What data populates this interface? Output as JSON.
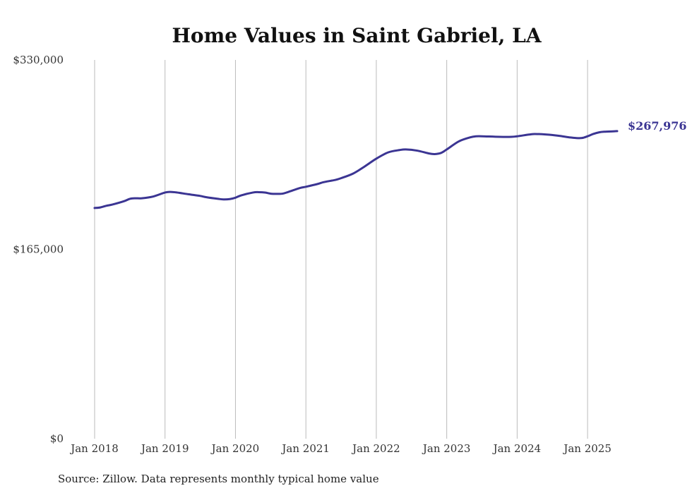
{
  "chart_data": {
    "type": "line",
    "title": "Home Values in Saint Gabriel, LA",
    "source": "Source: Zillow. Data represents monthly typical home value",
    "xlabel": "",
    "ylabel": "",
    "ylim": [
      0,
      330000
    ],
    "y_ticks": [
      {
        "value": 0,
        "label": "$0"
      },
      {
        "value": 165000,
        "label": "$165,000"
      },
      {
        "value": 330000,
        "label": "$330,000"
      }
    ],
    "x_ticks": [
      {
        "value": 2018.0,
        "label": "Jan 2018"
      },
      {
        "value": 2019.0,
        "label": "Jan 2019"
      },
      {
        "value": 2020.0,
        "label": "Jan 2020"
      },
      {
        "value": 2021.0,
        "label": "Jan 2021"
      },
      {
        "value": 2022.0,
        "label": "Jan 2022"
      },
      {
        "value": 2023.0,
        "label": "Jan 2023"
      },
      {
        "value": 2024.0,
        "label": "Jan 2024"
      },
      {
        "value": 2025.0,
        "label": "Jan 2025"
      }
    ],
    "xlim": [
      2018.0,
      2025.42
    ],
    "grid": "vertical",
    "line_color": "#3b3593",
    "end_label": "$267,976",
    "series": [
      {
        "x": [
          2018.0,
          2018.08,
          2018.17,
          2018.25,
          2018.42,
          2018.5,
          2018.58,
          2018.67,
          2018.83,
          2019.0,
          2019.08,
          2019.17,
          2019.33,
          2019.5,
          2019.58,
          2019.75,
          2019.83,
          2019.92,
          2020.0,
          2020.08,
          2020.25,
          2020.33,
          2020.42,
          2020.5,
          2020.58,
          2020.67,
          2020.75,
          2020.92,
          2021.0,
          2021.17,
          2021.25,
          2021.42,
          2021.5,
          2021.67,
          2021.83,
          2022.0,
          2022.17,
          2022.33,
          2022.42,
          2022.58,
          2022.75,
          2022.83,
          2022.92,
          2023.0,
          2023.17,
          2023.33,
          2023.42,
          2023.5,
          2023.75,
          2023.92,
          2024.0,
          2024.17,
          2024.25,
          2024.42,
          2024.58,
          2024.75,
          2024.83,
          2024.92,
          2025.0,
          2025.08,
          2025.17,
          2025.25,
          2025.42
        ],
        "y": [
          201000,
          201500,
          203000,
          204000,
          207000,
          209000,
          209500,
          209500,
          211000,
          214500,
          215000,
          214500,
          213000,
          211500,
          210500,
          209000,
          208500,
          208800,
          210000,
          212000,
          214500,
          214800,
          214500,
          213500,
          213300,
          213500,
          215000,
          218500,
          219500,
          222000,
          223500,
          225500,
          227000,
          231000,
          237000,
          244000,
          249500,
          251500,
          252000,
          251000,
          248500,
          248000,
          249000,
          252000,
          259000,
          262500,
          263500,
          263500,
          263000,
          263000,
          263500,
          265000,
          265500,
          265000,
          264000,
          262500,
          262000,
          262000,
          263500,
          265500,
          267000,
          267500,
          267976
        ]
      }
    ]
  }
}
